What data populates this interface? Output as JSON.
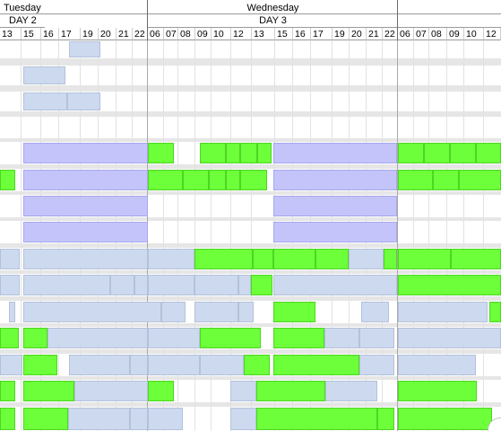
{
  "header": {
    "days": [
      {
        "name": "Tuesday",
        "label": "DAY 2"
      },
      {
        "name": "Wednesday",
        "label": "DAY 3"
      },
      {
        "name": "",
        "label": ""
      }
    ],
    "hours": [
      "13",
      "15",
      "16",
      "17",
      "19",
      "20",
      "21",
      "22",
      "06",
      "07",
      "08",
      "09",
      "10",
      "12",
      "13",
      "15",
      "16",
      "17",
      "19",
      "20",
      "21",
      "22",
      "06",
      "07",
      "08",
      "09",
      "10",
      "12"
    ]
  },
  "colors": {
    "green": "#6cff3a",
    "purple": "#c4c4fb",
    "blue": "#cdd9ee"
  }
}
